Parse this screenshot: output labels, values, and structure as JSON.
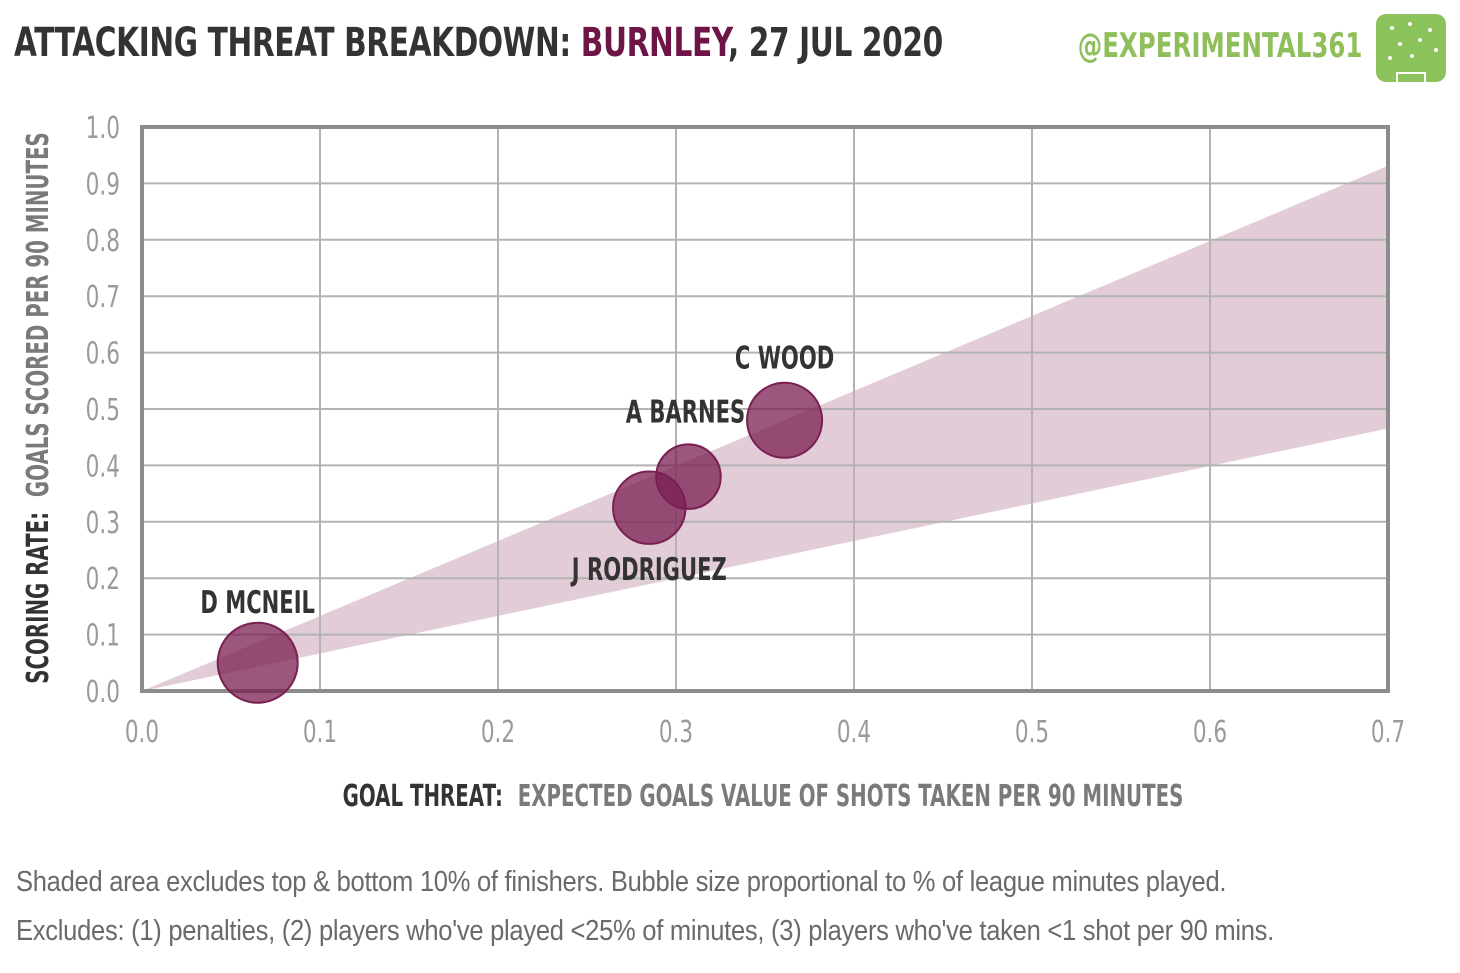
{
  "header": {
    "title_prefix": "ATTACKING THREAT BREAKDOWN:",
    "team": "BURNLEY",
    "date": ", 27 JUL 2020",
    "handle": "@EXPERIMENTAL361",
    "logo_icon": "pitch-logo-icon"
  },
  "colors": {
    "bubble": "#7a1f52",
    "band": "#dfc6d3",
    "team": "#6e1446",
    "handle": "#8fbf5a"
  },
  "chart_data": {
    "type": "scatter",
    "xlabel_bold": "GOAL THREAT:",
    "xlabel_rest": "EXPECTED GOALS VALUE OF SHOTS TAKEN PER 90 MINUTES",
    "ylabel_bold": "SCORING RATE:",
    "ylabel_rest": "GOALS SCORED PER 90 MINUTES",
    "xlim": [
      0,
      0.7
    ],
    "ylim": [
      0,
      1.0
    ],
    "x_ticks": [
      "0.0",
      "0.1",
      "0.2",
      "0.3",
      "0.4",
      "0.5",
      "0.6",
      "0.7"
    ],
    "y_ticks": [
      "0.0",
      "0.1",
      "0.2",
      "0.3",
      "0.4",
      "0.5",
      "0.6",
      "0.7",
      "0.8",
      "0.9",
      "1.0"
    ],
    "grid": true,
    "band": {
      "lower_slope": 0.665,
      "upper_slope": 1.33
    },
    "points": [
      {
        "label": "D MCNEIL",
        "x": 0.065,
        "y": 0.05,
        "size": 1.0
      },
      {
        "label": "J RODRIGUEZ",
        "x": 0.285,
        "y": 0.325,
        "size": 0.82
      },
      {
        "label": "A BARNES",
        "x": 0.307,
        "y": 0.38,
        "size": 0.65
      },
      {
        "label": "C WOOD",
        "x": 0.361,
        "y": 0.48,
        "size": 0.88
      }
    ]
  },
  "footer": {
    "line1": "Shaded area excludes top & bottom 10% of finishers. Bubble size proportional to % of league minutes played.",
    "line2": "Excludes: (1) penalties, (2) players who've played <25% of minutes, (3) players who've taken <1 shot per 90 mins."
  }
}
